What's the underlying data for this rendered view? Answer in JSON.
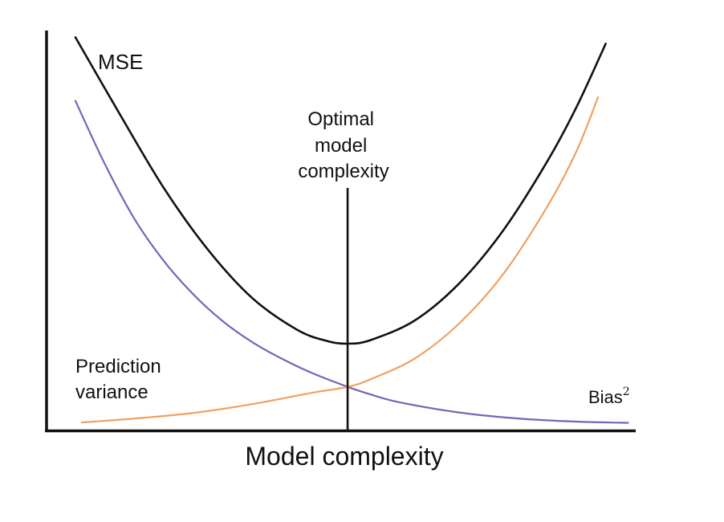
{
  "chart_data": {
    "type": "line",
    "title": "",
    "xlabel": "Model complexity",
    "ylabel": "",
    "xlim": [
      0,
      10
    ],
    "ylim": [
      0,
      10
    ],
    "grid": false,
    "legend": "none",
    "optimal": {
      "x": 5.11,
      "label_lines": [
        "Optimal",
        "model",
        "complexity"
      ]
    },
    "annotations": {
      "variance_lines": [
        "Prediction",
        "variance"
      ],
      "bias_base": "Bias",
      "bias_sup": "2"
    },
    "series": [
      {
        "name": "MSE",
        "color": "#111111",
        "x": [
          0.49,
          1.25,
          2.0,
          2.75,
          3.5,
          4.25,
          4.75,
          5.11,
          5.5,
          6.25,
          7.0,
          7.75,
          8.5,
          9.0,
          9.49
        ],
        "y": [
          9.83,
          7.89,
          6.04,
          4.5,
          3.3,
          2.52,
          2.24,
          2.17,
          2.26,
          2.75,
          3.67,
          5.0,
          6.73,
          8.1,
          9.67
        ]
      },
      {
        "name": "Prediction variance",
        "color": "#7a62b9",
        "x": [
          0.49,
          1.0,
          1.5,
          2.0,
          2.5,
          3.0,
          3.5,
          4.0,
          4.5,
          5.11,
          5.5,
          6.0,
          7.0,
          8.0,
          9.0,
          9.87
        ],
        "y": [
          8.24,
          6.63,
          5.27,
          4.22,
          3.39,
          2.72,
          2.2,
          1.79,
          1.44,
          1.09,
          0.9,
          0.7,
          0.45,
          0.3,
          0.22,
          0.19
        ]
      },
      {
        "name": "Bias²",
        "color": "#f0a060",
        "x": [
          0.6,
          1.5,
          2.5,
          3.5,
          4.5,
          5.11,
          5.5,
          6.25,
          7.0,
          7.75,
          8.5,
          9.0,
          9.36
        ],
        "y": [
          0.2,
          0.3,
          0.44,
          0.66,
          0.94,
          1.09,
          1.28,
          1.8,
          2.67,
          3.91,
          5.6,
          7.0,
          8.33
        ]
      }
    ]
  }
}
